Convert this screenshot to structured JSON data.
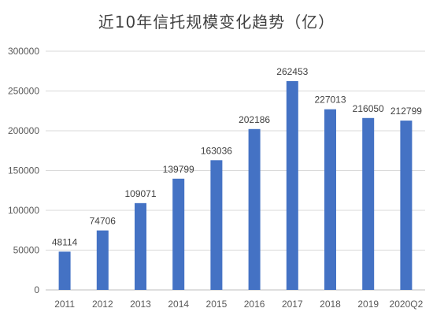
{
  "chart_data": {
    "type": "bar",
    "title": "近10年信托规模变化趋势（亿）",
    "categories": [
      "2011",
      "2012",
      "2013",
      "2014",
      "2015",
      "2016",
      "2017",
      "2018",
      "2019",
      "2020Q2"
    ],
    "values": [
      48114,
      74706,
      109071,
      139799,
      163036,
      202186,
      262453,
      227013,
      216050,
      212799
    ],
    "yticks": [
      0,
      50000,
      100000,
      150000,
      200000,
      250000,
      300000
    ],
    "ylim": [
      0,
      300000
    ],
    "grid": true,
    "legend": "none",
    "xlabel": "",
    "ylabel": "",
    "colors": {
      "bar": "#4472C4",
      "grid": "#D9D9D9",
      "axis": "#BFBFBF",
      "text": "#595959"
    }
  }
}
